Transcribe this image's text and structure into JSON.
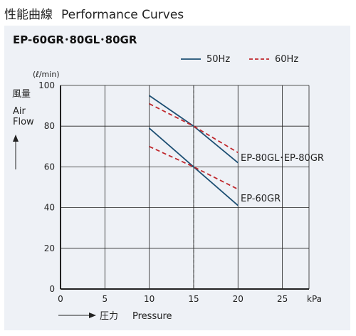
{
  "header": {
    "title_ja": "性能曲線",
    "title_en": "Performance Curves"
  },
  "panel": {
    "model_title": "EP-60GR･80GL･80GR"
  },
  "colors": {
    "hz50": "#1d4f73",
    "hz60": "#c0282d",
    "axis": "#222222",
    "grid": "#222222",
    "panel_bg": "#eef1f6"
  },
  "chart_data": {
    "type": "line",
    "unit_label": "(ℓ/min)",
    "ylabel_ja": "風量",
    "ylabel_en": [
      "Air",
      "Flow"
    ],
    "xlabel_ja": "圧力",
    "xlabel_en": "Pressure",
    "x_unit": "kPa",
    "xlim": [
      0,
      28
    ],
    "ylim": [
      0,
      100
    ],
    "x_ticks": [
      0,
      5,
      10,
      15,
      20,
      25
    ],
    "y_ticks": [
      0,
      20,
      40,
      60,
      80,
      100
    ],
    "grid": true,
    "reference_line_x": 15,
    "legend": [
      {
        "label": "50Hz",
        "style": "solid",
        "color": "#1d4f73"
      },
      {
        "label": "60Hz",
        "style": "dashed",
        "color": "#c0282d"
      }
    ],
    "series": [
      {
        "group": "EP-80GL･EP-80GR",
        "hz": "50Hz",
        "points": [
          [
            10,
            95
          ],
          [
            15,
            80
          ],
          [
            20,
            62
          ]
        ]
      },
      {
        "group": "EP-80GL･EP-80GR",
        "hz": "60Hz",
        "points": [
          [
            10,
            91
          ],
          [
            15,
            80
          ],
          [
            20,
            67
          ]
        ]
      },
      {
        "group": "EP-60GR",
        "hz": "50Hz",
        "points": [
          [
            10,
            79
          ],
          [
            15,
            60
          ],
          [
            20,
            41
          ]
        ]
      },
      {
        "group": "EP-60GR",
        "hz": "60Hz",
        "points": [
          [
            10,
            70
          ],
          [
            15,
            60
          ],
          [
            20,
            49
          ]
        ]
      }
    ],
    "annotations": [
      {
        "text": "EP-80GL･EP-80GR",
        "x": 20.3,
        "y": 63
      },
      {
        "text": "EP-60GR",
        "x": 20.3,
        "y": 43
      }
    ]
  }
}
